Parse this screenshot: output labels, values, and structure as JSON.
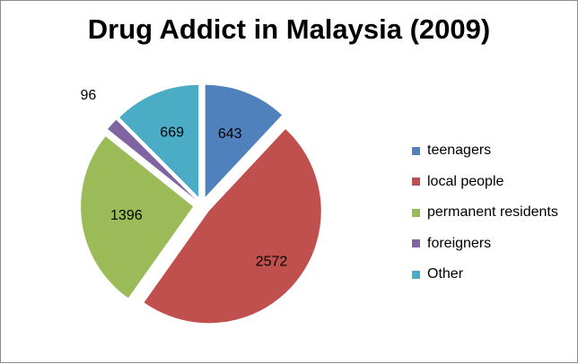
{
  "chart_data": {
    "type": "pie",
    "title": "Drug Addict in Malaysia (2009)",
    "slices": [
      {
        "label": "teenagers",
        "value": 643,
        "color": "#4f81bd"
      },
      {
        "label": "local people",
        "value": 2572,
        "color": "#c0504d"
      },
      {
        "label": "permanent residents",
        "value": 1396,
        "color": "#9bbb59"
      },
      {
        "label": "foreigners",
        "value": 96,
        "color": "#8064a2"
      },
      {
        "label": "Other",
        "value": 669,
        "color": "#4bacc6"
      }
    ],
    "exploded": true,
    "data_labels": true,
    "legend_position": "right"
  }
}
